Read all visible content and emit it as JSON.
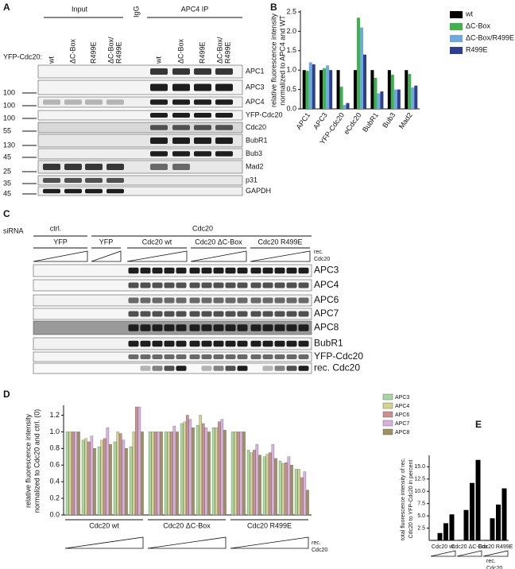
{
  "panels": {
    "A": {
      "letter": "A",
      "input": "Input",
      "igg": "IgG",
      "ip": "APC4 IP",
      "construct_label": "YFP-Cdc20:",
      "lanes": [
        [
          "wt"
        ],
        [
          "ΔC-Box"
        ],
        [
          "R499E"
        ],
        [
          "ΔC-Box/",
          "R499E"
        ],
        [
          "wt"
        ],
        [
          "ΔC-Box"
        ],
        [
          "R499E"
        ],
        [
          "ΔC-Box/",
          "R499E"
        ]
      ],
      "blots": [
        "APC1",
        "APC3",
        "APC4",
        "YFP-Cdc20",
        "Cdc20",
        "BubR1",
        "Bub3",
        "Mad2",
        "p31",
        "GAPDH"
      ],
      "markers": [
        null,
        100,
        100,
        100,
        55,
        130,
        45,
        25,
        35,
        45
      ]
    },
    "B": {
      "letter": "B"
    },
    "C": {
      "letter": "C",
      "sirna": "siRNA",
      "ctrl": "ctrl.",
      "cdc20": "Cdc20",
      "conditions": [
        "YFP",
        "YFP",
        "Cdc20 wt",
        "Cdc20 ΔC-Box",
        "Cdc20 R499E"
      ],
      "wedge_label": [
        "rec.",
        "Cdc20"
      ],
      "blots": [
        "APC3",
        "APC4",
        "APC6",
        "APC7",
        "APC8",
        "BubR1",
        "YFP-Cdc20",
        "rec. Cdc20"
      ]
    },
    "D": {
      "letter": "D"
    },
    "E": {
      "letter": "E"
    }
  },
  "chart_data": [
    {
      "type": "bar",
      "ylabel": [
        "relative fluorescence intensity",
        "normalized to APC4 and WT"
      ],
      "categories": [
        "APC1",
        "APC3",
        "YFP-Cdc20",
        "eCdc20",
        "BubR1",
        "Bub3",
        "Mad2"
      ],
      "series": [
        {
          "name": "wt",
          "color": "#000000",
          "values": [
            1.0,
            1.0,
            1.0,
            1.0,
            1.0,
            1.0,
            1.0
          ]
        },
        {
          "name": "ΔC-Box",
          "color": "#3cb44b",
          "values": [
            0.98,
            1.05,
            0.57,
            2.35,
            0.8,
            0.88,
            0.9
          ]
        },
        {
          "name": "ΔC-Box/R499E",
          "color": "#6fa8dc",
          "values": [
            1.2,
            1.12,
            0.1,
            2.1,
            0.4,
            0.5,
            0.55
          ]
        },
        {
          "name": "R499E",
          "color": "#2e3f8f",
          "values": [
            1.15,
            1.0,
            0.15,
            1.4,
            0.45,
            0.5,
            0.6
          ]
        }
      ],
      "ylim": [
        0,
        2.5
      ],
      "yticks": [
        {
          "value": 0,
          "label": "0.0"
        },
        0.5,
        {
          "value": 1,
          "label": "1.0"
        },
        1.5,
        {
          "value": 2,
          "label": "2.0"
        },
        2.5
      ]
    },
    {
      "type": "bar",
      "ylabel": [
        "relative fluorescence intensity",
        "normalized to Cdc20 and ctrl. (0)"
      ],
      "categories": [
        null,
        null,
        null,
        null,
        null,
        null,
        null,
        null,
        null,
        null,
        null,
        null,
        null,
        null,
        null
      ],
      "groups": [
        "Cdc20 wt",
        "Cdc20 ΔC-Box",
        "Cdc20 R499E"
      ],
      "wedge_label": [
        "rec.",
        "Cdc20"
      ],
      "series": [
        {
          "name": "APC3",
          "color": "#a6d8a0",
          "values": [
            1.0,
            0.9,
            0.82,
            0.88,
            0.82,
            1.0,
            1.0,
            1.1,
            1.08,
            1.05,
            1.0,
            0.78,
            0.7,
            0.65,
            0.55
          ]
        },
        {
          "name": "APC4",
          "color": "#d4d48a",
          "values": [
            1.0,
            0.92,
            0.9,
            1.0,
            1.0,
            1.0,
            1.0,
            1.12,
            1.2,
            1.05,
            1.0,
            0.75,
            0.73,
            0.62,
            0.55
          ]
        },
        {
          "name": "APC6",
          "color": "#c89090",
          "values": [
            1.0,
            0.88,
            0.92,
            0.98,
            1.3,
            1.0,
            1.0,
            1.2,
            1.1,
            1.12,
            1.0,
            0.78,
            0.75,
            0.63,
            0.45
          ]
        },
        {
          "name": "APC7",
          "color": "#d8b0e0",
          "values": [
            1.0,
            0.95,
            1.05,
            0.9,
            1.3,
            1.0,
            1.07,
            1.15,
            1.05,
            1.15,
            1.0,
            0.85,
            0.85,
            0.7,
            0.52
          ]
        },
        {
          "name": "APC8",
          "color": "#a09060",
          "values": [
            1.0,
            0.8,
            0.85,
            0.8,
            1.0,
            1.0,
            1.0,
            1.05,
            1.0,
            1.02,
            1.0,
            0.72,
            0.68,
            0.6,
            0.3
          ]
        }
      ],
      "ylim": [
        0,
        1.3
      ],
      "yticks": [
        {
          "value": 0,
          "label": "0.0"
        },
        0.2,
        0.4,
        0.6,
        0.8,
        {
          "value": 1,
          "label": "1.0"
        },
        1.2
      ]
    },
    {
      "type": "bar",
      "ylabel": [
        "total fluorescence intensity of rec.",
        "Cdc20 to YFP-Cdc20 in percent"
      ],
      "categories": [
        null,
        null,
        null,
        null,
        null,
        null,
        null,
        null,
        null,
        null,
        null,
        null
      ],
      "groups": [
        "Cdc20 wt",
        "Cdc20 ΔC-Box",
        "Cdc20 R499E"
      ],
      "wedge_label": [
        "rec.",
        "Cdc20"
      ],
      "color": "#000000",
      "values": [
        0.1,
        1.5,
        3.5,
        5.3,
        0.1,
        6.2,
        11.7,
        16.4,
        0.1,
        4.5,
        7.3,
        10.6
      ],
      "ylim": [
        0,
        17
      ],
      "yticks": [
        2.5,
        {
          "value": 5,
          "label": "5.0"
        },
        7.5,
        {
          "value": 10,
          "label": "10.0"
        },
        12.5,
        {
          "value": 15,
          "label": "15.0"
        }
      ]
    }
  ]
}
